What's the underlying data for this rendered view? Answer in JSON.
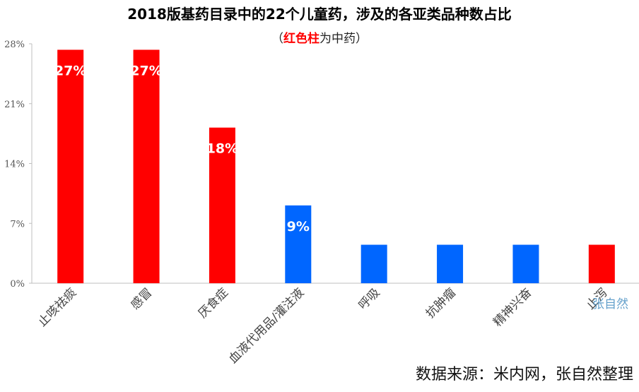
{
  "chart_data": {
    "type": "bar",
    "title": "2018版基药目录中的22个儿童药，涉及的各亚类品种数占比",
    "subtitle_prefix": "（",
    "subtitle_highlight": "红色柱",
    "subtitle_rest": "为中药）",
    "categories": [
      "止咳祛痰",
      "感冒",
      "厌食症",
      "血液代用品/灌注液",
      "呼吸",
      "抗肿瘤",
      "精神兴奋",
      "止泻"
    ],
    "values": [
      27.3,
      27.3,
      18.2,
      9.1,
      4.5,
      4.5,
      4.5,
      4.5
    ],
    "data_labels": [
      "27%",
      "27%",
      "18%",
      "9%",
      "",
      "",
      "",
      ""
    ],
    "colors": [
      "#ff0000",
      "#ff0000",
      "#ff0000",
      "#0066ff",
      "#0066ff",
      "#0066ff",
      "#0066ff",
      "#ff0000"
    ],
    "yticks": [
      "0%",
      "7%",
      "14%",
      "21%",
      "28%"
    ],
    "ylim": [
      0,
      28
    ],
    "grid": false,
    "legend": "none",
    "source": "数据来源：米内网，张自然整理",
    "watermark": "张自然"
  }
}
